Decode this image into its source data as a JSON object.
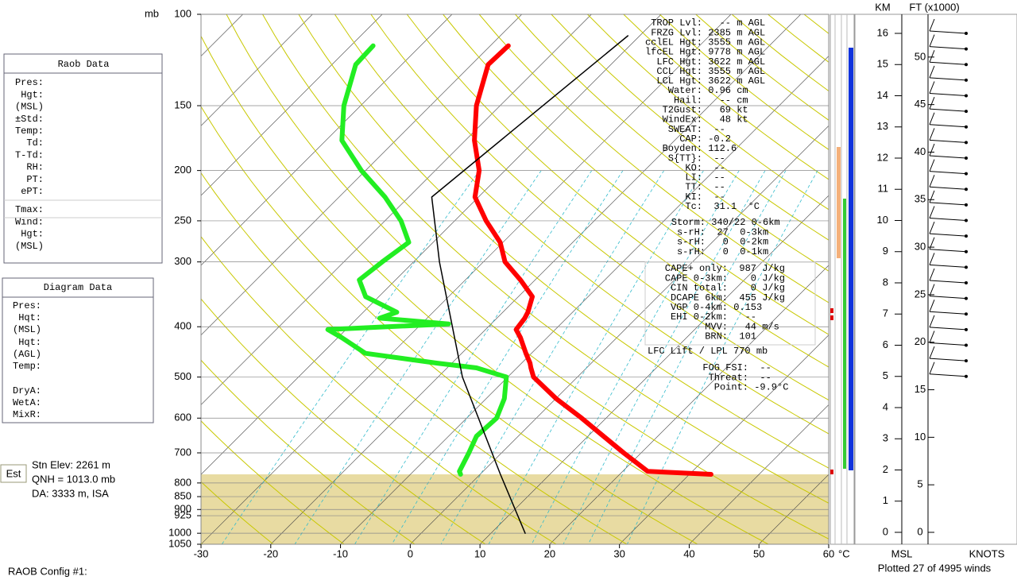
{
  "chart_data": {
    "type": "skewt",
    "x_unit": "°C",
    "y_unit": "mb",
    "xlim": [
      -30,
      60
    ],
    "xticks": [
      -30,
      -20,
      -10,
      0,
      10,
      20,
      30,
      40,
      50,
      60
    ],
    "ylim": [
      100,
      1050
    ],
    "log_y": true,
    "yticks": [
      100,
      150,
      200,
      250,
      300,
      400,
      500,
      600,
      700,
      800,
      850,
      900,
      925,
      1000,
      1050
    ],
    "ground_pressure": 770,
    "series": [
      {
        "color": "#ff0000",
        "pressure": [
          770,
          760,
          700,
          650,
          600,
          550,
          500,
          480,
          470,
          450,
          420,
          405,
          395,
          385,
          375,
          350,
          325,
          300,
          275,
          250,
          225,
          200,
          175,
          150,
          125,
          115
        ],
        "values": [
          33.1,
          23.6,
          17.5,
          12.2,
          6.5,
          0.0,
          -6.3,
          -8.0,
          -8.8,
          -10.8,
          -13.8,
          -15.6,
          -15.8,
          -16.0,
          -16.4,
          -18.0,
          -22.1,
          -26.9,
          -30.4,
          -35.5,
          -40.5,
          -43.7,
          -48.7,
          -53.4,
          -57.6,
          -57.4
        ]
      },
      {
        "color": "#22ee22",
        "pressure": [
          770,
          760,
          700,
          650,
          600,
          550,
          500,
          480,
          470,
          450,
          420,
          405,
          395,
          385,
          375,
          350,
          325,
          300,
          275,
          250,
          225,
          200,
          175,
          150,
          125,
          115
        ],
        "values": [
          -2.8,
          -3.4,
          -4.7,
          -6.0,
          -5.7,
          -7.4,
          -10.2,
          -15.8,
          -22.2,
          -33.8,
          -39.4,
          -42.6,
          -26.1,
          -36.8,
          -35.2,
          -41.9,
          -45.2,
          -44.5,
          -43.5,
          -47.7,
          -53.4,
          -60.6,
          -67.7,
          -72.4,
          -76.6,
          -76.8
        ]
      },
      {
        "color": "#000000",
        "pressure": [
          1000,
          770,
          500,
          300,
          225,
          110
        ],
        "values": [
          14.9,
          2.9,
          -16.5,
          -36.3,
          -46.7,
          -41.7
        ]
      }
    ],
    "raob_data": {
      "title": "Raob Data",
      "rows": [
        "Pres:",
        "Hgt:",
        "(MSL)",
        "±Std:",
        "Temp:",
        "Td:",
        "T-Td:",
        "RH:",
        "PT:",
        "ePT:",
        "Tmax:",
        "Wind:",
        "Hgt:",
        "(MSL)"
      ]
    },
    "diagram_data": {
      "title": "Diagram Data",
      "rows": [
        "Pres:",
        "Hqt:",
        "(MSL)",
        "Hqt:",
        "(AGL)",
        "Temp:",
        "DryA:",
        "WetA:",
        "MixR:"
      ]
    },
    "indices": [
      [
        "TROP Lvl:",
        "   -- m AGL"
      ],
      [
        "FRZG Lvl:",
        " 2385 m AGL"
      ],
      [
        "cclEL Hgt:",
        " 3555 m AGL"
      ],
      [
        "lfcEL Hgt:",
        " 9778 m AGL"
      ],
      [
        "LFC Hgt:",
        " 3622 m AGL"
      ],
      [
        "CCL Hgt:",
        " 3555 m AGL"
      ],
      [
        "LCL Hgt:",
        " 3622 m AGL"
      ],
      [
        "Water:",
        " 0.96 cm"
      ],
      [
        "Hail:",
        "   -- cm"
      ],
      [
        "T2Gust:",
        "   69 kt"
      ],
      [
        "WindEx:",
        "   48 kt"
      ],
      [
        "SWEAT:",
        "  --"
      ],
      [
        "CAP:",
        " -0.2"
      ],
      [
        "Boyden:",
        " 112.6"
      ],
      [
        "S{TT}:",
        "  --"
      ],
      [
        "KO:",
        "  --"
      ],
      [
        "LI:",
        "  --"
      ],
      [
        "TT:",
        "  --"
      ],
      [
        "KI:",
        "  --"
      ],
      [
        "Tc:",
        "  31.1  °C"
      ]
    ],
    "storm": [
      [
        "Storm:",
        " 340/22 0-6km"
      ],
      [
        "s-rH:",
        "  27  0-3km"
      ],
      [
        "s-rH:",
        "   0  0-2km"
      ],
      [
        "s-rH:",
        "   0  0-1km"
      ]
    ],
    "cape": [
      [
        "CAPE+ only:",
        "  987 J/kg"
      ],
      [
        "CAPE 0-3km:",
        "    0 J/kg"
      ],
      [
        "CIN total:",
        "    0 J/kg"
      ],
      [
        "DCAPE 6km:",
        "  455 J/kg"
      ],
      [
        "VGP 0-4km:",
        " 0.153"
      ],
      [
        "EHI 0-2km:",
        "   --"
      ],
      [
        "MVV:",
        "   44 m/s"
      ],
      [
        "BRN:",
        "  101"
      ]
    ],
    "lift_note": "LFC Lift / LPL 770 mb",
    "fog": [
      [
        "FOG FSI:",
        "  --"
      ],
      [
        "Threat:",
        "  --"
      ],
      [
        "Point:",
        " -9.9°C"
      ]
    ],
    "station": {
      "badge": "Est",
      "lines": [
        "Stn Elev: 2261 m",
        "QNH = 1013.0 mb",
        "DA: 3333 m, ISA"
      ]
    },
    "config": "RAOB Config #1:",
    "wind": {
      "km_label": "KM",
      "ft_label": "FT (x1000)",
      "km_ticks": [
        0,
        1,
        2,
        3,
        4,
        5,
        6,
        7,
        8,
        9,
        10,
        11,
        12,
        13,
        14,
        15,
        16
      ],
      "ft_ticks": [
        0,
        5,
        10,
        15,
        20,
        25,
        30,
        35,
        40,
        45,
        50
      ],
      "msl_label": "MSL",
      "knots_label": "KNOTS",
      "footer": "Plotted 27 of 4995 winds"
    }
  }
}
